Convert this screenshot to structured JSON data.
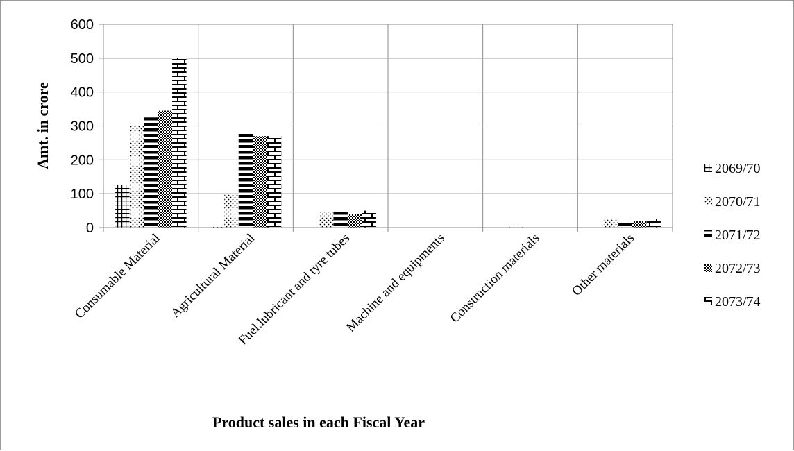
{
  "chart_data": {
    "type": "bar",
    "title": "",
    "xlabel": "Product sales in each Fiscal Year",
    "ylabel": "Amt. in crore",
    "ylim": [
      0,
      600
    ],
    "yticks": [
      0,
      100,
      200,
      300,
      400,
      500,
      600
    ],
    "grid": true,
    "legend_position": "right",
    "categories": [
      "Consumable Material",
      "Agricultural Material",
      "Fuel,lubricant and tyre tubes",
      "Machine and equipments",
      "Construction materials",
      "Other materials"
    ],
    "series": [
      {
        "name": "2069/70",
        "pattern": "grid",
        "values": [
          125,
          2,
          0,
          0,
          0,
          0
        ]
      },
      {
        "name": "2070/71",
        "pattern": "dots",
        "values": [
          300,
          100,
          45,
          0,
          2,
          25
        ]
      },
      {
        "name": "2071/72",
        "pattern": "hstripes",
        "values": [
          325,
          280,
          50,
          0,
          0,
          20
        ]
      },
      {
        "name": "2072/73",
        "pattern": "checker",
        "values": [
          345,
          270,
          40,
          0,
          0,
          20
        ]
      },
      {
        "name": "2073/74",
        "pattern": "brick",
        "values": [
          500,
          270,
          50,
          0,
          0,
          25
        ]
      }
    ]
  }
}
